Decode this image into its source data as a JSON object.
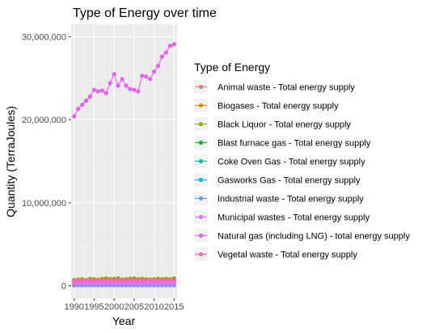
{
  "chart_data": {
    "type": "line",
    "title": "Type of Energy over time",
    "xlabel": "Year",
    "ylabel": "Quantity (TerraJoules)",
    "xlim": [
      1989.25,
      2015.75
    ],
    "ylim": [
      -1500000,
      31500000
    ],
    "x_ticks": [
      1990,
      1995,
      2000,
      2005,
      2010,
      2015
    ],
    "x_tick_labels": [
      "1990",
      "1995",
      "2000",
      "2005",
      "2010",
      "2015"
    ],
    "y_ticks": [
      0,
      10000000,
      20000000,
      30000000
    ],
    "y_tick_labels": [
      "0",
      "10,000,000",
      "20,000,000",
      "30,000,000"
    ],
    "grid": true,
    "legend_title": "Type of Energy",
    "legend_position": "right",
    "x": [
      1990,
      1991,
      1992,
      1993,
      1994,
      1995,
      1996,
      1997,
      1998,
      1999,
      2000,
      2001,
      2002,
      2003,
      2004,
      2005,
      2006,
      2007,
      2008,
      2009,
      2010,
      2011,
      2012,
      2013,
      2014,
      2015
    ],
    "series": [
      {
        "name": "Animal waste - Total energy supply",
        "color": "#F8766D",
        "values": [
          300000,
          300000,
          300000,
          300000,
          300000,
          300000,
          300000,
          300000,
          300000,
          300000,
          300000,
          300000,
          300000,
          300000,
          300000,
          300000,
          300000,
          300000,
          300000,
          300000,
          300000,
          300000,
          300000,
          300000,
          300000,
          300000
        ]
      },
      {
        "name": "Biogases - Total energy supply",
        "color": "#D39200",
        "values": [
          500000,
          550000,
          500000,
          600000,
          550000,
          500000,
          600000,
          650000,
          600000,
          700000,
          650000,
          600000,
          550000,
          650000,
          600000,
          700000,
          650000,
          600000,
          650000,
          600000,
          550000,
          600000,
          650000,
          600000,
          650000,
          700000
        ]
      },
      {
        "name": "Black Liquor - Total energy supply",
        "color": "#93AA00",
        "values": [
          700000,
          750000,
          800000,
          700000,
          850000,
          800000,
          750000,
          850000,
          900000,
          800000,
          850000,
          900000,
          750000,
          800000,
          850000,
          900000,
          800000,
          850000,
          800000,
          750000,
          800000,
          850000,
          800000,
          850000,
          800000,
          900000
        ]
      },
      {
        "name": "Blast furnace gas - Total energy supply",
        "color": "#00BA38",
        "values": [
          200000,
          200000,
          200000,
          200000,
          200000,
          200000,
          200000,
          200000,
          200000,
          200000,
          200000,
          200000,
          200000,
          200000,
          200000,
          200000,
          200000,
          200000,
          200000,
          200000,
          200000,
          200000,
          200000,
          200000,
          200000,
          200000
        ]
      },
      {
        "name": "Coke Oven Gas - Total energy supply",
        "color": "#00C19F",
        "values": [
          150000,
          150000,
          150000,
          150000,
          150000,
          150000,
          150000,
          150000,
          150000,
          150000,
          150000,
          150000,
          150000,
          150000,
          150000,
          150000,
          150000,
          150000,
          150000,
          150000,
          150000,
          150000,
          150000,
          150000,
          150000,
          150000
        ]
      },
      {
        "name": "Gasworks Gas - Total energy supply",
        "color": "#00B9E3",
        "values": [
          100000,
          100000,
          100000,
          100000,
          100000,
          100000,
          100000,
          100000,
          100000,
          100000,
          100000,
          100000,
          100000,
          100000,
          100000,
          100000,
          100000,
          100000,
          100000,
          100000,
          100000,
          100000,
          100000,
          100000,
          100000,
          100000
        ]
      },
      {
        "name": "Industrial waste - Total energy supply",
        "color": "#619CFF",
        "values": [
          50000,
          50000,
          50000,
          50000,
          50000,
          50000,
          50000,
          50000,
          50000,
          50000,
          50000,
          50000,
          50000,
          50000,
          50000,
          50000,
          50000,
          50000,
          50000,
          50000,
          50000,
          50000,
          50000,
          50000,
          50000,
          50000
        ]
      },
      {
        "name": "Municipal wastes - Total energy supply",
        "color": "#DB72FB",
        "values": [
          250000,
          250000,
          250000,
          250000,
          250000,
          250000,
          250000,
          250000,
          250000,
          250000,
          250000,
          250000,
          250000,
          250000,
          250000,
          250000,
          250000,
          250000,
          250000,
          250000,
          250000,
          250000,
          250000,
          250000,
          250000,
          250000
        ]
      },
      {
        "name": "Natural gas (including LNG) - total energy supply",
        "color": "#E85EF4",
        "values": [
          20400000,
          21300000,
          21800000,
          22300000,
          22800000,
          23600000,
          23400000,
          23500000,
          23200000,
          24400000,
          25500000,
          24100000,
          24900000,
          24100000,
          23700000,
          23600000,
          23400000,
          25300000,
          25200000,
          24900000,
          25800000,
          26500000,
          27600000,
          28100000,
          28900000,
          29100000
        ]
      },
      {
        "name": "Vegetal waste - Total energy supply",
        "color": "#FF61C3",
        "values": [
          600000,
          620000,
          600000,
          610000,
          620000,
          600000,
          630000,
          620000,
          610000,
          620000,
          640000,
          630000,
          620000,
          610000,
          620000,
          630000,
          620000,
          610000,
          620000,
          630000,
          640000,
          620000,
          610000,
          620000,
          630000,
          640000
        ]
      }
    ]
  }
}
